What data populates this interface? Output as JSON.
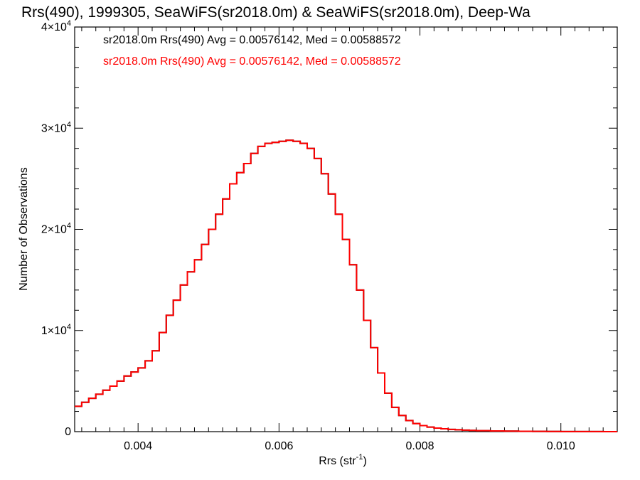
{
  "chart_data": {
    "type": "line",
    "title": "Rrs(490), 1999305, SeaWiFS(sr2018.0m) & SeaWiFS(sr2018.0m), Deep-Wa",
    "xlabel": "Rrs (str",
    "xlabel_sup": "-1",
    "xlabel_close": ")",
    "ylabel": "Number of Observations",
    "xlim": [
      0.0031,
      0.0108
    ],
    "ylim": [
      0,
      40000
    ],
    "x_ticks": [
      {
        "value": 0.004,
        "label": "0.004"
      },
      {
        "value": 0.006,
        "label": "0.006"
      },
      {
        "value": 0.008,
        "label": "0.008"
      },
      {
        "value": 0.01,
        "label": "0.010"
      }
    ],
    "y_ticks": [
      {
        "value": 0,
        "mant": "0",
        "exp": ""
      },
      {
        "value": 10000,
        "mant": "1×10",
        "exp": "4"
      },
      {
        "value": 20000,
        "mant": "2×10",
        "exp": "4"
      },
      {
        "value": 30000,
        "mant": "3×10",
        "exp": "4"
      },
      {
        "value": 40000,
        "mant": "4×10",
        "exp": "4"
      }
    ],
    "grid": false,
    "legend": {
      "placement": "top-left",
      "entries": [
        {
          "text": "sr2018.0m Rrs(490) Avg = 0.00576142, Med = 0.00588572",
          "color": "#000000"
        },
        {
          "text": "sr2018.0m Rrs(490) Avg = 0.00576142, Med = 0.00588572",
          "color": "#ff0000"
        }
      ]
    },
    "series": [
      {
        "color": "#000000",
        "x": [
          0.0031,
          0.0032,
          0.0033,
          0.0034,
          0.0035,
          0.0036,
          0.0037,
          0.0038,
          0.0039,
          0.004,
          0.0041,
          0.0042,
          0.0043,
          0.0044,
          0.0045,
          0.0046,
          0.0047,
          0.0048,
          0.0049,
          0.005,
          0.0051,
          0.0052,
          0.0053,
          0.0054,
          0.0055,
          0.0056,
          0.0057,
          0.0058,
          0.0059,
          0.006,
          0.0061,
          0.0062,
          0.0063,
          0.0064,
          0.0065,
          0.0066,
          0.0067,
          0.0068,
          0.0069,
          0.007,
          0.0071,
          0.0072,
          0.0073,
          0.0074,
          0.0075,
          0.0076,
          0.0077,
          0.0078,
          0.0079,
          0.008,
          0.0081,
          0.0082,
          0.0083,
          0.0084,
          0.0085,
          0.0086,
          0.0087,
          0.0088,
          0.009,
          0.0092,
          0.0094,
          0.0096,
          0.0098,
          0.01,
          0.0102,
          0.0104,
          0.0106,
          0.0108
        ],
        "y": [
          2500,
          2900,
          3300,
          3700,
          4100,
          4500,
          5000,
          5500,
          5900,
          6300,
          7000,
          8000,
          9800,
          11500,
          13000,
          14500,
          15800,
          17000,
          18500,
          20000,
          21500,
          23000,
          24500,
          25600,
          26500,
          27500,
          28200,
          28500,
          28600,
          28700,
          28800,
          28700,
          28500,
          28000,
          27000,
          25500,
          23500,
          21500,
          19000,
          16500,
          14000,
          11000,
          8300,
          5800,
          3800,
          2400,
          1600,
          1100,
          800,
          600,
          450,
          350,
          280,
          220,
          180,
          150,
          120,
          100,
          70,
          50,
          35,
          25,
          15,
          10,
          8,
          5,
          3,
          2
        ]
      },
      {
        "color": "#ff0000",
        "x": [
          0.0031,
          0.0032,
          0.0033,
          0.0034,
          0.0035,
          0.0036,
          0.0037,
          0.0038,
          0.0039,
          0.004,
          0.0041,
          0.0042,
          0.0043,
          0.0044,
          0.0045,
          0.0046,
          0.0047,
          0.0048,
          0.0049,
          0.005,
          0.0051,
          0.0052,
          0.0053,
          0.0054,
          0.0055,
          0.0056,
          0.0057,
          0.0058,
          0.0059,
          0.006,
          0.0061,
          0.0062,
          0.0063,
          0.0064,
          0.0065,
          0.0066,
          0.0067,
          0.0068,
          0.0069,
          0.007,
          0.0071,
          0.0072,
          0.0073,
          0.0074,
          0.0075,
          0.0076,
          0.0077,
          0.0078,
          0.0079,
          0.008,
          0.0081,
          0.0082,
          0.0083,
          0.0084,
          0.0085,
          0.0086,
          0.0087,
          0.0088,
          0.009,
          0.0092,
          0.0094,
          0.0096,
          0.0098,
          0.01,
          0.0102,
          0.0104,
          0.0106,
          0.0108
        ],
        "y": [
          2500,
          2900,
          3300,
          3700,
          4100,
          4500,
          5000,
          5500,
          5900,
          6300,
          7000,
          8000,
          9800,
          11500,
          13000,
          14500,
          15800,
          17000,
          18500,
          20000,
          21500,
          23000,
          24500,
          25600,
          26500,
          27500,
          28200,
          28500,
          28600,
          28700,
          28800,
          28700,
          28500,
          28000,
          27000,
          25500,
          23500,
          21500,
          19000,
          16500,
          14000,
          11000,
          8300,
          5800,
          3800,
          2400,
          1600,
          1100,
          800,
          600,
          450,
          350,
          280,
          220,
          180,
          150,
          120,
          100,
          70,
          50,
          35,
          25,
          15,
          10,
          8,
          5,
          3,
          2
        ]
      }
    ]
  }
}
